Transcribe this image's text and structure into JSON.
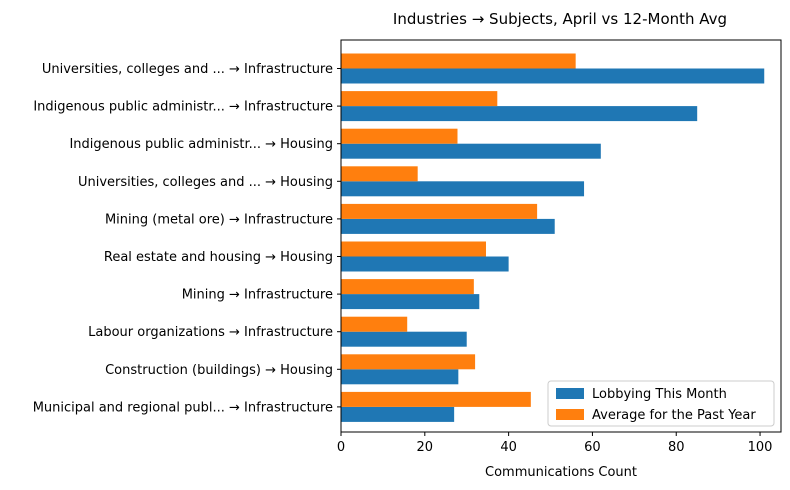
{
  "chart_data": {
    "type": "bar",
    "orientation": "horizontal",
    "title": "Industries → Subjects, April vs 12-Month Avg",
    "xlabel": "Communications Count",
    "ylabel": "",
    "xlim": [
      0,
      105
    ],
    "xticks": [
      0,
      20,
      40,
      60,
      80,
      100
    ],
    "grid": false,
    "legend_position": "lower-right",
    "categories": [
      "Universities, colleges and ... → Infrastructure",
      "Indigenous public administr... → Infrastructure",
      "Indigenous public administr... → Housing",
      "Universities, colleges and ... → Housing",
      "Mining (metal ore) → Infrastructure",
      "Real estate and housing → Housing",
      "Mining → Infrastructure",
      "Labour organizations → Infrastructure",
      "Construction (buildings) → Housing",
      "Municipal and regional publ... → Infrastructure"
    ],
    "series": [
      {
        "name": "Lobbying This Month",
        "color": "#1f77b4",
        "values": [
          101,
          85,
          62,
          58,
          51,
          40,
          33,
          30,
          28,
          27
        ]
      },
      {
        "name": "Average for the Past Year",
        "color": "#ff7f0e",
        "values": [
          56,
          37.3,
          27.8,
          18.3,
          46.8,
          34.6,
          31.7,
          15.8,
          32,
          45.3
        ]
      }
    ]
  }
}
